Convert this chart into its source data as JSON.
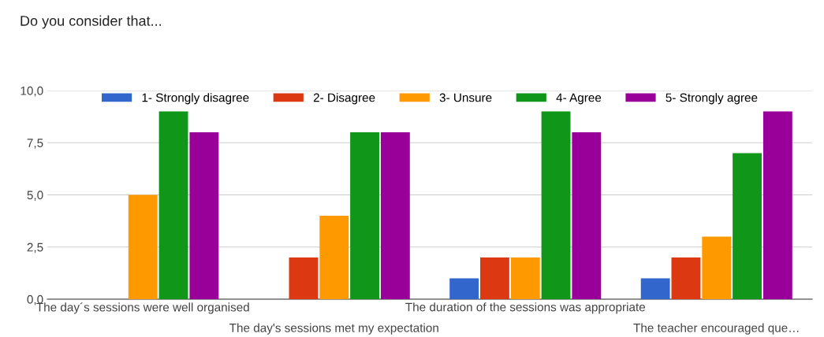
{
  "chart_data": {
    "type": "bar",
    "title": "Do you consider that...",
    "categories": [
      "The day´s sessions were well organised",
      "The day's sessions met my expectation",
      "The duration of the sessions was appropriate",
      "The teacher encouraged que…"
    ],
    "series": [
      {
        "name": "1- Strongly disagree",
        "color": "#3366cc",
        "values": [
          0,
          0,
          1,
          1
        ]
      },
      {
        "name": "2- Disagree",
        "color": "#dc3912",
        "values": [
          0,
          2,
          2,
          2
        ]
      },
      {
        "name": "3- Unsure",
        "color": "#ff9900",
        "values": [
          5,
          4,
          2,
          3
        ]
      },
      {
        "name": "4- Agree",
        "color": "#109618",
        "values": [
          9,
          8,
          9,
          7
        ]
      },
      {
        "name": "5- Strongly agree",
        "color": "#990099",
        "values": [
          8,
          8,
          8,
          9
        ]
      }
    ],
    "ylim": [
      0,
      10
    ],
    "yticks": [
      {
        "value": 0,
        "label": "0,0"
      },
      {
        "value": 2.5,
        "label": "2,5"
      },
      {
        "value": 5,
        "label": "5,0"
      },
      {
        "value": 7.5,
        "label": "7,5"
      },
      {
        "value": 10,
        "label": "10,0"
      }
    ],
    "grid": "y",
    "legend": "top"
  }
}
